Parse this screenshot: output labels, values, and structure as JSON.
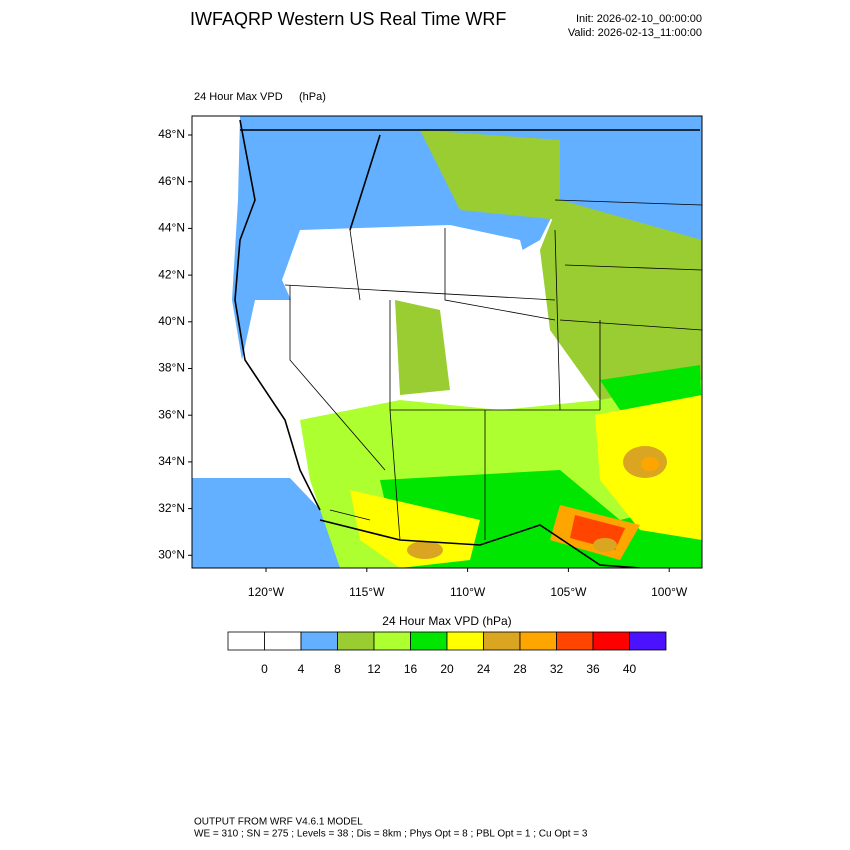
{
  "header": {
    "title": "IWFAQRP Western US Real Time WRF",
    "init": "Init: 2026-02-10_00:00:00",
    "valid": "Valid: 2026-02-13_11:00:00"
  },
  "map": {
    "field": "24 Hour Max VPD",
    "units": "(hPa)",
    "lat_labels": [
      "48°N",
      "46°N",
      "44°N",
      "42°N",
      "40°N",
      "38°N",
      "36°N",
      "34°N",
      "32°N",
      "30°N"
    ],
    "lon_labels": [
      "120°W",
      "115°W",
      "110°W",
      "105°W",
      "100°W"
    ]
  },
  "colorbar": {
    "title": "24 Hour Max VPD  (hPa)",
    "ticks": [
      0,
      4,
      8,
      12,
      16,
      20,
      24,
      28,
      32,
      36,
      40
    ],
    "colors": [
      "#ffffff",
      "#ffffff",
      "#62b0ff",
      "#9acd32",
      "#adff2f",
      "#00e600",
      "#ffff00",
      "#daa520",
      "#ffa500",
      "#ff4500",
      "#ff0000",
      "#4b12ff"
    ]
  },
  "footer": {
    "line1": "OUTPUT FROM WRF V4.6.1 MODEL",
    "line2": "WE = 310 ; SN = 275 ; Levels = 38 ; Dis = 8km ; Phys Opt = 8 ; PBL Opt = 1 ; Cu Opt = 3"
  }
}
